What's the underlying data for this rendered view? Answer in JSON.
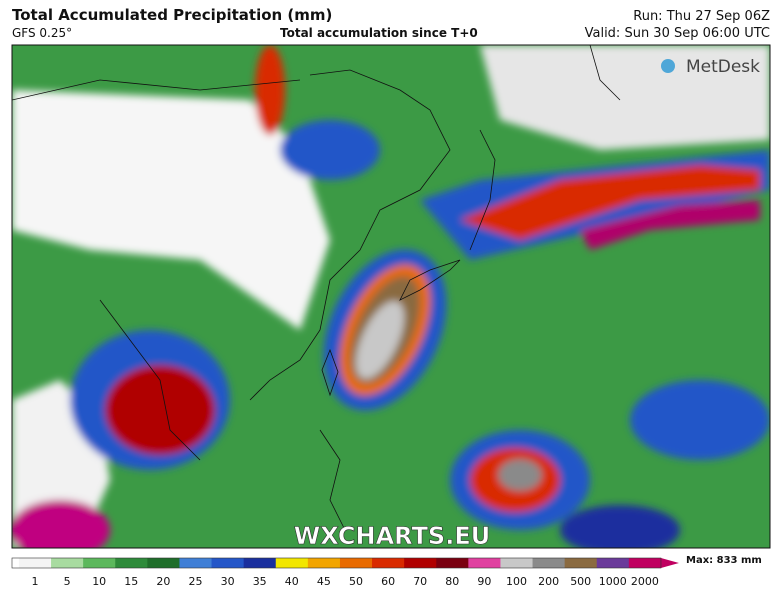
{
  "header": {
    "title": "Total Accumulated Precipitation (mm)",
    "model": "GFS 0.25°",
    "subtitle": "Total accumulation since T+0",
    "run": "Run: Thu 27 Sep 06Z",
    "valid": "Valid: Sun 30 Sep 06:00 UTC"
  },
  "branding": {
    "logo": "MetDesk",
    "watermark": "WXCHARTS.EU"
  },
  "legend": {
    "labels": [
      1,
      5,
      10,
      15,
      20,
      25,
      30,
      35,
      40,
      45,
      50,
      60,
      70,
      80,
      90,
      100,
      200,
      500,
      1000,
      2000
    ],
    "colors": [
      "#f4f4f4",
      "#a8dba0",
      "#5cb85c",
      "#2e8b3a",
      "#1f6e2a",
      "#3f7fd6",
      "#2456c8",
      "#1a2f9e",
      "#f2e600",
      "#f2a500",
      "#e86a00",
      "#d92a00",
      "#b00000",
      "#7a0010",
      "#e040a0",
      "#c8c8c8",
      "#8a8a8a",
      "#8a6a40",
      "#6a3a9a",
      "#c00060"
    ],
    "max": "Max: 833 mm"
  }
}
